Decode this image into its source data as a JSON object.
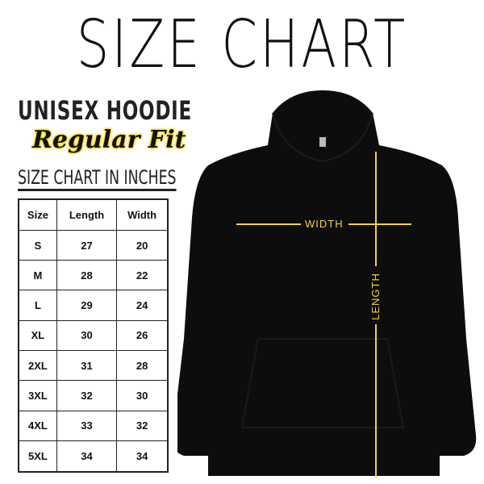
{
  "title": "SIZE CHART",
  "product": "UNISEX HOODIE",
  "fit": "Regular Fit",
  "subtitle": "SIZE CHART IN INCHES",
  "table": {
    "headers": [
      "Size",
      "Length",
      "Width"
    ],
    "rows": [
      [
        "S",
        "27",
        "20"
      ],
      [
        "M",
        "28",
        "22"
      ],
      [
        "L",
        "29",
        "24"
      ],
      [
        "XL",
        "30",
        "26"
      ],
      [
        "2XL",
        "31",
        "28"
      ],
      [
        "3XL",
        "32",
        "30"
      ],
      [
        "4XL",
        "33",
        "32"
      ],
      [
        "5XL",
        "34",
        "34"
      ]
    ]
  },
  "measurements": {
    "width_label": "WIDTH",
    "length_label": "LENGTH"
  },
  "colors": {
    "accent": "#f2d43a",
    "garment": "#0d0d0d"
  }
}
